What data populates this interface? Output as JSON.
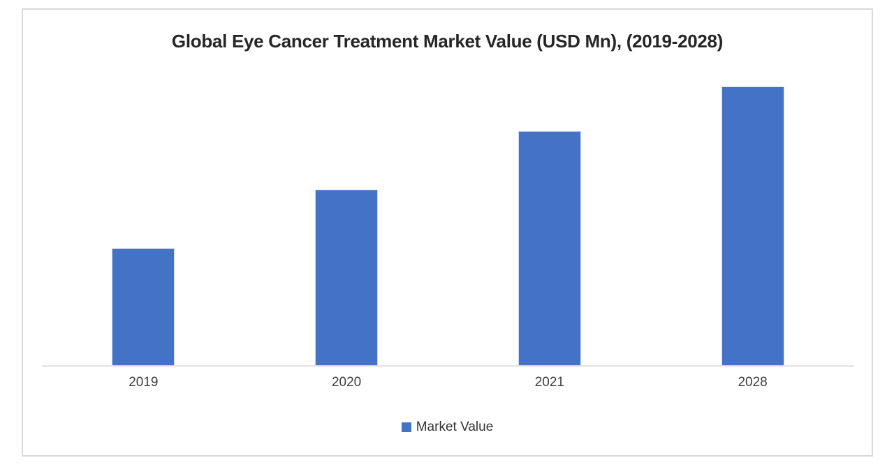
{
  "chart_data": {
    "type": "bar",
    "title": "Global Eye Cancer Treatment Market Value (USD Mn), (2019-2028)",
    "categories": [
      "2019",
      "2020",
      "2021",
      "2028"
    ],
    "values": [
      42,
      63,
      84,
      100
    ],
    "units": "relative bar height (% of 2028 bar); chart displays no y-axis, no gridlines, no data labels",
    "series_name": "Market Value",
    "xlabel": "",
    "ylabel": "",
    "legend_position": "bottom-center",
    "grid": false,
    "axis_range_shown": false
  },
  "colors": {
    "bar": "#4472c4",
    "bar_edge": "#cdd9f0",
    "title_text": "#262626",
    "axis_label_text": "#404040",
    "legend_text": "#333333",
    "axis_line": "#e2e2e2",
    "frame_border": "#d9d9d9",
    "background": "#ffffff"
  }
}
